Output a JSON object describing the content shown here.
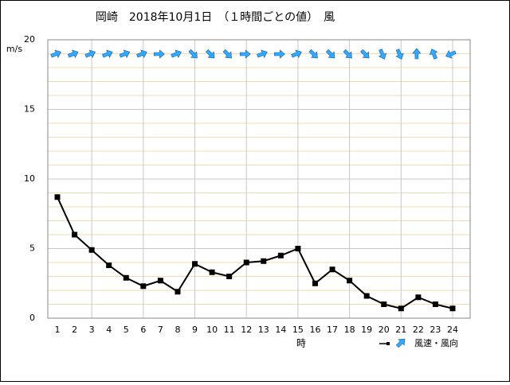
{
  "chart_data": {
    "type": "line",
    "title": "岡崎　2018年10月1日　（１時間ごとの値）　風",
    "y_label": "m/s",
    "x_label": "時",
    "categories": [
      "1",
      "2",
      "3",
      "4",
      "5",
      "6",
      "7",
      "8",
      "9",
      "10",
      "11",
      "12",
      "13",
      "14",
      "15",
      "16",
      "17",
      "18",
      "19",
      "20",
      "21",
      "22",
      "23",
      "24"
    ],
    "series": [
      {
        "name": "風速・風向",
        "color": "#000000",
        "values": [
          8.7,
          6.0,
          4.9,
          3.8,
          2.9,
          2.3,
          2.7,
          1.9,
          3.9,
          3.3,
          3.0,
          4.0,
          4.1,
          4.5,
          5.0,
          2.5,
          3.5,
          2.7,
          1.6,
          1.0,
          0.7,
          1.5,
          1.0,
          0.7
        ],
        "wind_dir_deg": [
          67.5,
          67.5,
          67.5,
          67.5,
          67.5,
          67.5,
          90,
          67.5,
          135,
          135,
          135,
          90,
          67.5,
          90,
          67.5,
          135,
          135,
          135,
          135,
          157.5,
          157.5,
          0,
          337.5,
          247.5
        ],
        "arrow_color": "#33aaff"
      }
    ],
    "ylim": [
      0,
      20
    ],
    "yticks": [
      0,
      5,
      10,
      15,
      20
    ],
    "minor_yticks": [
      1,
      2,
      3,
      4,
      6,
      7,
      8,
      9,
      11,
      12,
      13,
      14,
      16,
      17,
      18,
      19
    ],
    "major_x_every": 3,
    "grid": true
  }
}
